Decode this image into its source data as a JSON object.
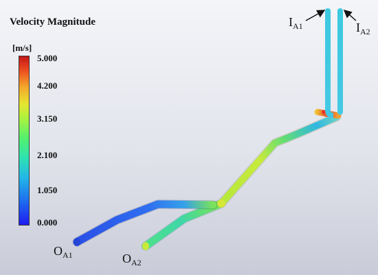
{
  "legend": {
    "title": "Velocity Magnitude",
    "unit": "[m/s]",
    "ticks": [
      "5.000",
      "4.200",
      "3.150",
      "2.100",
      "1.050",
      "0.000"
    ]
  },
  "labels": {
    "inlet_a1_main": "I",
    "inlet_a1_sub": "A1",
    "inlet_a2_main": "I",
    "inlet_a2_sub": "A2",
    "outlet_a1_main": "O",
    "outlet_a1_sub": "A1",
    "outlet_a2_main": "O",
    "outlet_a2_sub": "A2"
  },
  "colors": {
    "background_top": "#f4f5f8",
    "background_bottom": "#c9ccd8",
    "low_velocity": "#2b59e8",
    "mid_velocity": "#58e07a",
    "high_velocity": "#e8342a",
    "inlet_pipe": "#3fc9e0"
  }
}
